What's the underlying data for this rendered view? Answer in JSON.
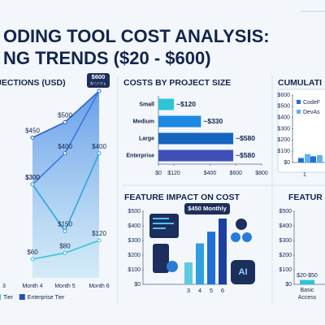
{
  "header": {
    "line1": "ODING TOOL COST ANALYSIS:",
    "line2": "NG TRENDS ($20 - $600)"
  },
  "chart_data": [
    {
      "type": "line",
      "title": "JECTIONS (USD)",
      "categories": [
        "3",
        "Month 4",
        "Month 5",
        "Month 6"
      ],
      "series": [
        {
          "color": "#2b63d0",
          "values": [
            null,
            450,
            500,
            600
          ],
          "value_labels": [
            null,
            "$450",
            "$500",
            "$600"
          ]
        },
        {
          "color": "#3a78de",
          "values": [
            null,
            300,
            400,
            600
          ],
          "value_labels": [
            null,
            "$300",
            "$400",
            "$600"
          ]
        },
        {
          "color": "#2aa9d8",
          "values": [
            null,
            300,
            150,
            400
          ],
          "value_labels": [
            null,
            "$300",
            "$150",
            "$400"
          ]
        },
        {
          "color": "#36c6d4",
          "values": [
            null,
            60,
            80,
            120
          ],
          "value_labels": [
            null,
            "$60",
            "$80",
            "$120"
          ]
        }
      ],
      "annotation": "Monthly",
      "legend": [
        {
          "label": "Tier",
          "color": "#36c6d4"
        },
        {
          "label": "Enterprise Tier",
          "color": "#2b4fb0"
        }
      ]
    },
    {
      "type": "bar",
      "orientation": "horizontal",
      "title": "COSTS BY PROJECT SIZE",
      "categories": [
        "Small",
        "Medium",
        "Large",
        "Enterprise"
      ],
      "values": [
        120,
        330,
        580,
        580
      ],
      "value_labels": [
        "~$120",
        "~$330",
        "~$580",
        "~$580"
      ],
      "colors": [
        "#2ec4d6",
        "#1e88e5",
        "#1565c0",
        "#3f4fb8"
      ],
      "xlim": [
        0,
        800
      ],
      "xticks": [
        {
          "value": 0,
          "label": "$0"
        },
        {
          "value": 120,
          "label": "$120"
        },
        {
          "value": 400,
          "label": "$400"
        },
        {
          "value": 600,
          "label": "$600"
        },
        {
          "value": 800,
          "label": "$800"
        }
      ]
    },
    {
      "type": "bar",
      "title": "CUMULATI",
      "categories": [
        "1",
        null
      ],
      "series": [
        {
          "name": "CodeF",
          "color": "#1e6fd9",
          "values": [
            40,
            55
          ]
        },
        {
          "name": "DevAs",
          "color": "#5fb3f0",
          "values": [
            75,
            65
          ]
        }
      ],
      "ylim": [
        0,
        600
      ],
      "yticks": [
        {
          "value": 0,
          "label": "$0"
        },
        {
          "value": 100,
          "label": "$100"
        },
        {
          "value": 200,
          "label": "$200"
        },
        {
          "value": 300,
          "label": "$300"
        },
        {
          "value": 400,
          "label": "$400"
        },
        {
          "value": 500,
          "label": "$500"
        },
        {
          "value": 600,
          "label": "$600"
        }
      ]
    },
    {
      "type": "bar",
      "title": "FEATURE  IMPACT ON COST",
      "categories": [
        "3",
        "4",
        "5",
        "6"
      ],
      "values": [
        150,
        280,
        360,
        450
      ],
      "colors": [
        "#5ccbe0",
        "#2f9fe0",
        "#1e6fd9",
        "#1f3f9e"
      ],
      "annotation": "$450 Monthly",
      "ylim": [
        0,
        500
      ],
      "yticks": [
        {
          "value": 0,
          "label": "$0"
        },
        {
          "value": 100,
          "label": "$100"
        },
        {
          "value": 200,
          "label": "$200"
        },
        {
          "value": 300,
          "label": "$300"
        },
        {
          "value": 400,
          "label": "$400"
        },
        {
          "value": 500,
          "label": "$500"
        }
      ]
    },
    {
      "type": "bar",
      "title": "FEATUR",
      "categories": [
        "Basic Access"
      ],
      "values": [
        30
      ],
      "colors": [
        "#2ec4d6"
      ],
      "annotation": "$20-$50",
      "ylim": [
        0,
        500
      ],
      "yticks": [
        {
          "value": 0,
          "label": "$0"
        },
        {
          "value": 100,
          "label": "$100"
        },
        {
          "value": 200,
          "label": "$200"
        },
        {
          "value": 300,
          "label": "$300"
        },
        {
          "value": 400,
          "label": "$400"
        },
        {
          "value": 500,
          "label": "$500"
        }
      ]
    }
  ]
}
